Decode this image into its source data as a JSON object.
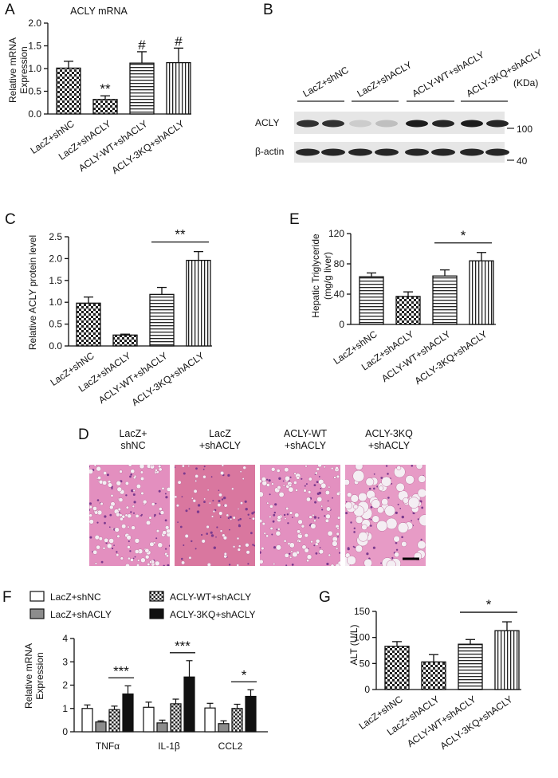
{
  "panels": {
    "A": {
      "letter": "A",
      "title": "ACLY mRNA",
      "ylabel_line1": "Relative mRNA",
      "ylabel_line2": "Expression"
    },
    "B": {
      "letter": "B",
      "unit": "(KDa)",
      "row1": "ACLY",
      "row2": "β-actin",
      "marker1": "100",
      "marker2": "40",
      "lanes": [
        "LacZ+shNC",
        "LacZ+shACLY",
        "ACLY-WT+shACLY",
        "ACLY-3KQ+shACLY"
      ]
    },
    "C": {
      "letter": "C",
      "ylabel": "Relative ACLY protein level"
    },
    "D": {
      "letter": "D",
      "labels": [
        [
          "LacZ+",
          "shNC"
        ],
        [
          "LacZ",
          "+shACLY"
        ],
        [
          "ACLY-WT",
          "+shACLY"
        ],
        [
          "ACLY-3KQ",
          "+shACLY"
        ]
      ]
    },
    "E": {
      "letter": "E",
      "ylabel_line1": "Hepatic Triglyceride",
      "ylabel_line2": "(mg/g liver)"
    },
    "F": {
      "letter": "F",
      "ylabel_line1": "Relative mRNA",
      "ylabel_line2": "Expression",
      "legend": [
        "LacZ+shNC",
        "LacZ+shACLY",
        "ACLY-WT+shACLY",
        "ACLY-3KQ+shACLY"
      ]
    },
    "G": {
      "letter": "G",
      "ylabel": "ALT (U/L)"
    }
  },
  "chart_data": [
    {
      "panel": "A",
      "type": "bar",
      "title": "ACLY mRNA",
      "categories": [
        "LacZ+shNC",
        "LacZ+shACLY",
        "ACLY-WT+shACLY",
        "ACLY-3KQ+shACLY"
      ],
      "values": [
        1.01,
        0.32,
        1.12,
        1.13
      ],
      "errors": [
        0.15,
        0.08,
        0.25,
        0.32
      ],
      "ylim": [
        0,
        2.0
      ],
      "yticks": [
        "0.0",
        "0.5",
        "1.0",
        "1.5",
        "2.0"
      ],
      "significance": [
        "",
        "**",
        "#",
        "#"
      ],
      "patterns": [
        "checker",
        "checker",
        "hstripe",
        "vstripe"
      ]
    },
    {
      "panel": "C",
      "type": "bar",
      "categories": [
        "LacZ+shNC",
        "LacZ+shACLY",
        "ACLY-WT+shACLY",
        "ACLY-3KQ+shACLY"
      ],
      "values": [
        0.98,
        0.25,
        1.18,
        1.96
      ],
      "errors": [
        0.14,
        0.02,
        0.16,
        0.2
      ],
      "ylim": [
        0,
        2.5
      ],
      "yticks": [
        "0.0",
        "0.5",
        "1.0",
        "1.5",
        "2.0",
        "2.5"
      ],
      "bracket": {
        "from": 2,
        "to": 3,
        "label": "**"
      },
      "patterns": [
        "checker",
        "checker",
        "hstripe",
        "vstripe"
      ]
    },
    {
      "panel": "E",
      "type": "bar",
      "categories": [
        "LacZ+shNC",
        "LacZ+shACLY",
        "ACLY-WT+shACLY",
        "ACLY-3KQ+shACLY"
      ],
      "values": [
        63,
        37,
        64,
        84
      ],
      "errors": [
        5,
        6,
        8,
        11
      ],
      "ylim": [
        0,
        120
      ],
      "yticks": [
        "0",
        "40",
        "80",
        "120"
      ],
      "bracket": {
        "from": 2,
        "to": 3,
        "label": "*"
      },
      "patterns": [
        "hstripe",
        "checker",
        "hstripe",
        "vstripe"
      ]
    },
    {
      "panel": "F",
      "type": "bar",
      "categories": [
        "TNFα",
        "IL-1β",
        "CCL2"
      ],
      "series": [
        {
          "name": "LacZ+shNC",
          "values": [
            1.0,
            1.05,
            1.02
          ],
          "errors": [
            0.15,
            0.22,
            0.2
          ]
        },
        {
          "name": "LacZ+shACLY",
          "values": [
            0.42,
            0.38,
            0.35
          ],
          "errors": [
            0.05,
            0.12,
            0.12
          ]
        },
        {
          "name": "ACLY-WT+shACLY",
          "values": [
            0.95,
            1.2,
            1.0
          ],
          "errors": [
            0.15,
            0.2,
            0.18
          ]
        },
        {
          "name": "ACLY-3KQ+shACLY",
          "values": [
            1.62,
            2.35,
            1.52
          ],
          "errors": [
            0.35,
            0.7,
            0.28
          ]
        }
      ],
      "ylim": [
        0,
        4
      ],
      "yticks": [
        "0",
        "1",
        "2",
        "3",
        "4"
      ],
      "brackets": [
        {
          "group": 0,
          "label": "***"
        },
        {
          "group": 1,
          "label": "***"
        },
        {
          "group": 2,
          "label": "*"
        }
      ]
    },
    {
      "panel": "G",
      "type": "bar",
      "categories": [
        "LacZ+shNC",
        "LacZ+shACLY",
        "ACLY-WT+shACLY",
        "ACLY-3KQ+shACLY"
      ],
      "values": [
        83,
        53,
        87,
        113
      ],
      "errors": [
        9,
        14,
        9,
        17
      ],
      "ylim": [
        0,
        150
      ],
      "yticks": [
        "0",
        "50",
        "100",
        "150"
      ],
      "bracket": {
        "from": 2,
        "to": 3,
        "label": "*"
      },
      "patterns": [
        "checker",
        "checker",
        "hstripe",
        "vstripe"
      ]
    }
  ]
}
